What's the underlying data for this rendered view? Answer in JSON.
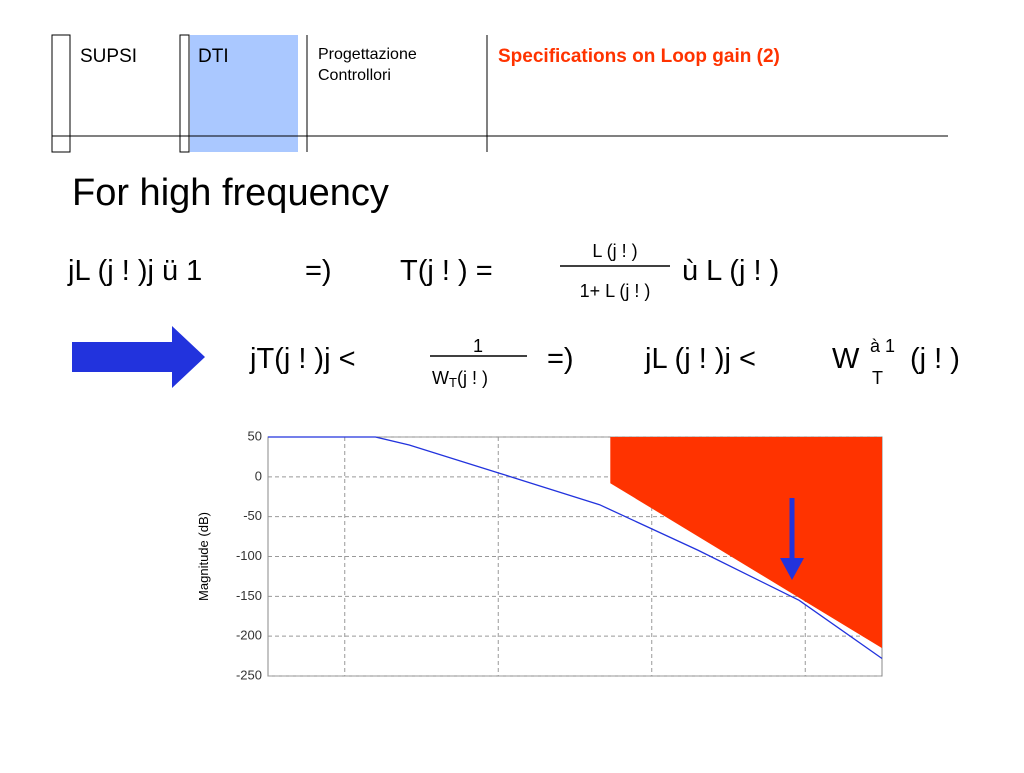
{
  "header": {
    "org": "SUPSI",
    "dept": "DTI",
    "course": [
      "Progettazione",
      "Controllori"
    ],
    "title": "Specifications on Loop gain (2)"
  },
  "heading": "For high frequency",
  "formula1": {
    "left": "jL (j ! )j ü  1",
    "implies": "=)",
    "lhs": "T(j ! ) =",
    "numerator": "L (j ! )",
    "denominator": "1+ L (j ! )",
    "right": "ù  L (j ! )"
  },
  "formula2": {
    "left": "jT(j ! )j <",
    "numerator": "1",
    "denominator_w": "W",
    "denominator_sub": "T",
    "denominator_arg": "(j ! )",
    "implies": "=)",
    "middle": "jL (j ! )j <",
    "w": "W",
    "w_sup": "à 1",
    "w_sub": "T",
    "w_arg": "(j ! )"
  },
  "chart_data": {
    "type": "line",
    "ylabel": "Magnitude (dB)",
    "xlim": [
      0,
      4
    ],
    "xticks": [
      0.5,
      1.5,
      2.5,
      3.5
    ],
    "ylim": [
      -250,
      50
    ],
    "yticks": [
      -250,
      -200,
      -150,
      -100,
      -50,
      0,
      50
    ],
    "grid": true,
    "series": [
      {
        "color": "#2233dd",
        "x": [
          0,
          0.7,
          0.92,
          1.5,
          2.16,
          2.8,
          3.46,
          4
        ],
        "values": [
          50,
          50,
          40,
          5,
          -35,
          -92,
          -155,
          -228
        ]
      }
    ],
    "region": {
      "color": "#ff3300",
      "x": [
        2.23,
        4
      ],
      "values": [
        -8,
        -215
      ]
    }
  }
}
